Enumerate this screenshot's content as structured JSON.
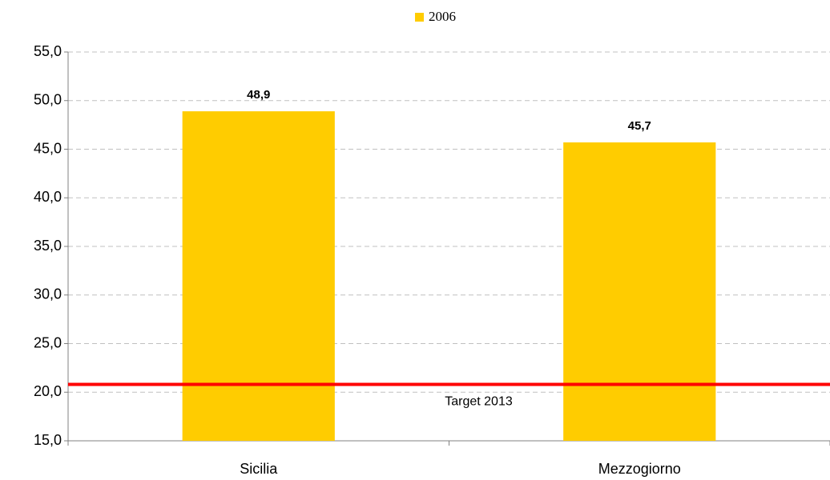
{
  "chart_data": {
    "type": "bar",
    "categories": [
      "Sicilia",
      "Mezzogiorno"
    ],
    "series": [
      {
        "name": "2006",
        "color": "#ffcc00",
        "values": [
          48.9,
          45.7
        ],
        "value_labels": [
          "48,9",
          "45,7"
        ]
      }
    ],
    "ylim": [
      15,
      55
    ],
    "yticks": [
      {
        "value": 15,
        "label": "15,0"
      },
      {
        "value": 20,
        "label": "20,0"
      },
      {
        "value": 25,
        "label": "25,0"
      },
      {
        "value": 30,
        "label": "30,0"
      },
      {
        "value": 35,
        "label": "35,0"
      },
      {
        "value": 40,
        "label": "40,0"
      },
      {
        "value": 45,
        "label": "45,0"
      },
      {
        "value": 50,
        "label": "50,0"
      },
      {
        "value": 55,
        "label": "55,0"
      }
    ],
    "grid": true,
    "legend": "top",
    "target": {
      "value": 20.8,
      "label": "Target 2013",
      "color": "#ff0000"
    }
  }
}
